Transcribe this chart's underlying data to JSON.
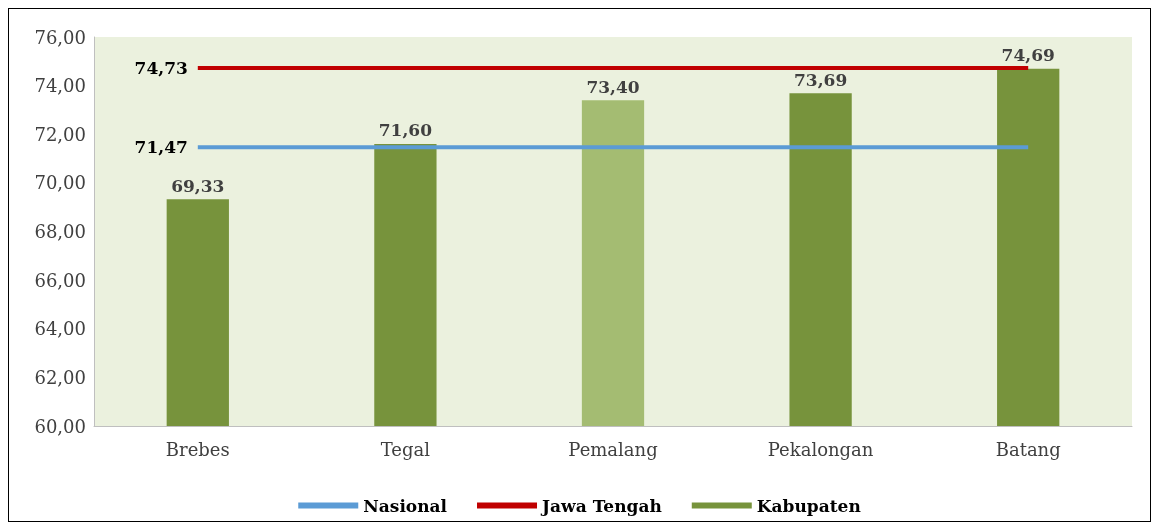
{
  "chart_data": {
    "type": "bar",
    "categories": [
      "Brebes",
      "Tegal",
      "Pemalang",
      "Pekalongan",
      "Batang"
    ],
    "series": [
      {
        "name": "Nasional",
        "type": "line",
        "color": "#5b9bd5",
        "values": [
          71.47,
          71.47,
          71.47,
          71.47,
          71.47
        ],
        "value_labels": [
          "71,47",
          null,
          null,
          null,
          null
        ]
      },
      {
        "name": "Jawa Tengah",
        "type": "line",
        "color": "#c00000",
        "values": [
          74.73,
          74.73,
          74.73,
          74.73,
          74.73
        ],
        "value_labels": [
          "74,73",
          null,
          null,
          null,
          null
        ]
      },
      {
        "name": "Kabupaten",
        "color": "#77933c",
        "colors": [
          "#77933c",
          "#77933c",
          "#a4bc72",
          "#77933c",
          "#77933c"
        ],
        "values": [
          69.33,
          71.6,
          73.4,
          73.69,
          74.69
        ],
        "value_labels": [
          "69,33",
          "71,60",
          "73,40",
          "73,69",
          "74,69"
        ]
      }
    ],
    "ylim": [
      60,
      76
    ],
    "yticks": [
      {
        "value": 60,
        "label": "60,00"
      },
      {
        "value": 62,
        "label": "62,00"
      },
      {
        "value": 64,
        "label": "64,00"
      },
      {
        "value": 66,
        "label": "66,00"
      },
      {
        "value": 68,
        "label": "68,00"
      },
      {
        "value": 70,
        "label": "70,00"
      },
      {
        "value": 72,
        "label": "72,00"
      },
      {
        "value": 74,
        "label": "74,00"
      },
      {
        "value": 76,
        "label": "76,00"
      }
    ],
    "grid": false,
    "legend": "bottom"
  }
}
